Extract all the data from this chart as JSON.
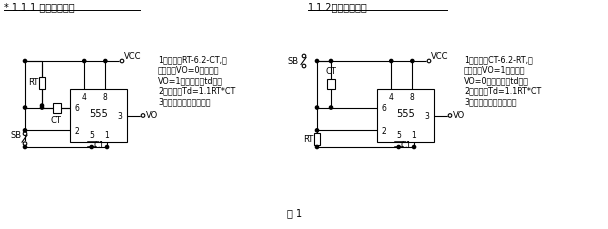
{
  "bg_color": "#ffffff",
  "line_color": "#000000",
  "title1": "* 1.1.1 人工启动单稳",
  "title2": "1.1.2人工启动单稳",
  "caption": "图 1",
  "desc1_lines": [
    "1）特点：RT-6.2-CT,人",
    "工启动，VO=0，稳态；",
    "VO=1，暂稳态（td）。",
    "2）公式：Td=1.1RT*CT",
    "3）用途：定时，延时。"
  ],
  "desc2_lines": [
    "1）特点：CT-6.2-RT,人",
    "工启动，VO=1，稳态；",
    "VO=0，暂稳态（td）。",
    "2）公式：Td=1.1RT*CT",
    "3）用途：定时，延时。"
  ]
}
